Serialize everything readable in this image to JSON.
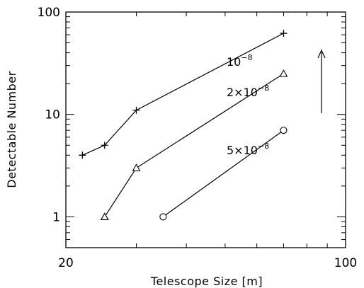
{
  "chart_data": {
    "type": "line",
    "title": "",
    "xlabel": "Telescope Size [m]",
    "ylabel": "Detectable Number",
    "xscale": "log",
    "yscale": "log",
    "xlim": [
      20,
      100
    ],
    "ylim": [
      0.5,
      100
    ],
    "x_tick_labels": [
      "20",
      "100"
    ],
    "y_tick_labels": [
      "1",
      "10",
      "100"
    ],
    "grid": false,
    "legend": "none",
    "series": [
      {
        "label_base": "10",
        "label_exponent": "−8",
        "marker": "plus",
        "x": [
          22,
          25,
          30,
          70
        ],
        "y": [
          4,
          5,
          11,
          62
        ]
      },
      {
        "label_base": "2×10",
        "label_exponent": "−8",
        "marker": "triangle",
        "x": [
          25,
          30,
          70
        ],
        "y": [
          1,
          3,
          25
        ]
      },
      {
        "label_base": "5×10",
        "label_exponent": "−8",
        "marker": "circle",
        "x": [
          35,
          70
        ],
        "y": [
          1,
          7
        ]
      }
    ],
    "annotation": {
      "type": "arrow",
      "direction": "up"
    }
  }
}
